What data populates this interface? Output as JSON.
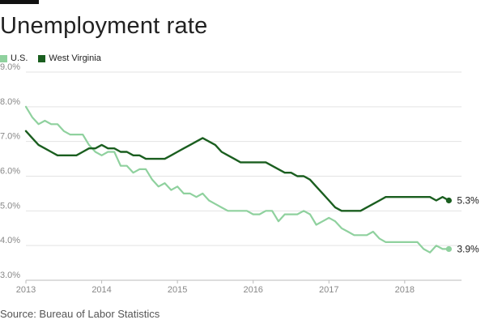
{
  "title": "Unemployment rate",
  "source": "Source: Bureau of Labor Statistics",
  "colors": {
    "us": "#8fd19e",
    "wv": "#1a5e1f",
    "grid": "#e3e3e3",
    "axis": "#bbbbbb"
  },
  "chart_data": {
    "type": "line",
    "title": "Unemployment rate",
    "xlabel": "",
    "ylabel": "",
    "xlim": [
      2013,
      2018.75
    ],
    "ylim": [
      3,
      9
    ],
    "x_ticks": [
      2013,
      2014,
      2015,
      2016,
      2017,
      2018
    ],
    "x_tick_labels": [
      "2013",
      "2014",
      "2015",
      "2016",
      "2017",
      "2018"
    ],
    "y_ticks": [
      3,
      4,
      5,
      6,
      7,
      8,
      9
    ],
    "y_tick_labels": [
      "3.0%",
      "4.0%",
      "5.0%",
      "6.0%",
      "7.0%",
      "8.0%",
      "9.0%"
    ],
    "series": [
      {
        "name": "U.S.",
        "color": "#8fd19e",
        "end_label": "3.9%",
        "x": [
          2013.0,
          2013.083,
          2013.167,
          2013.25,
          2013.333,
          2013.417,
          2013.5,
          2013.583,
          2013.667,
          2013.75,
          2013.833,
          2013.917,
          2014.0,
          2014.083,
          2014.167,
          2014.25,
          2014.333,
          2014.417,
          2014.5,
          2014.583,
          2014.667,
          2014.75,
          2014.833,
          2014.917,
          2015.0,
          2015.083,
          2015.167,
          2015.25,
          2015.333,
          2015.417,
          2015.5,
          2015.583,
          2015.667,
          2015.75,
          2015.833,
          2015.917,
          2016.0,
          2016.083,
          2016.167,
          2016.25,
          2016.333,
          2016.417,
          2016.5,
          2016.583,
          2016.667,
          2016.75,
          2016.833,
          2016.917,
          2017.0,
          2017.083,
          2017.167,
          2017.25,
          2017.333,
          2017.417,
          2017.5,
          2017.583,
          2017.667,
          2017.75,
          2017.833,
          2017.917,
          2018.0,
          2018.083,
          2018.167,
          2018.25,
          2018.333,
          2018.417,
          2018.5,
          2018.583
        ],
        "values": [
          8.0,
          7.7,
          7.5,
          7.6,
          7.5,
          7.5,
          7.3,
          7.2,
          7.2,
          7.2,
          6.9,
          6.7,
          6.6,
          6.7,
          6.7,
          6.3,
          6.3,
          6.1,
          6.2,
          6.2,
          5.9,
          5.7,
          5.8,
          5.6,
          5.7,
          5.5,
          5.5,
          5.4,
          5.5,
          5.3,
          5.2,
          5.1,
          5.0,
          5.0,
          5.0,
          5.0,
          4.9,
          4.9,
          5.0,
          5.0,
          4.7,
          4.9,
          4.9,
          4.9,
          5.0,
          4.9,
          4.6,
          4.7,
          4.8,
          4.7,
          4.5,
          4.4,
          4.3,
          4.3,
          4.3,
          4.4,
          4.2,
          4.1,
          4.1,
          4.1,
          4.1,
          4.1,
          4.1,
          3.9,
          3.8,
          4.0,
          3.9,
          3.9
        ]
      },
      {
        "name": "West Virginia",
        "color": "#1a5e1f",
        "end_label": "5.3%",
        "x": [
          2013.0,
          2013.083,
          2013.167,
          2013.25,
          2013.333,
          2013.417,
          2013.5,
          2013.583,
          2013.667,
          2013.75,
          2013.833,
          2013.917,
          2014.0,
          2014.083,
          2014.167,
          2014.25,
          2014.333,
          2014.417,
          2014.5,
          2014.583,
          2014.667,
          2014.75,
          2014.833,
          2014.917,
          2015.0,
          2015.083,
          2015.167,
          2015.25,
          2015.333,
          2015.417,
          2015.5,
          2015.583,
          2015.667,
          2015.75,
          2015.833,
          2015.917,
          2016.0,
          2016.083,
          2016.167,
          2016.25,
          2016.333,
          2016.417,
          2016.5,
          2016.583,
          2016.667,
          2016.75,
          2016.833,
          2016.917,
          2017.0,
          2017.083,
          2017.167,
          2017.25,
          2017.333,
          2017.417,
          2017.5,
          2017.583,
          2017.667,
          2017.75,
          2017.833,
          2017.917,
          2018.0,
          2018.083,
          2018.167,
          2018.25,
          2018.333,
          2018.417,
          2018.5,
          2018.583
        ],
        "values": [
          7.3,
          7.1,
          6.9,
          6.8,
          6.7,
          6.6,
          6.6,
          6.6,
          6.6,
          6.7,
          6.8,
          6.8,
          6.9,
          6.8,
          6.8,
          6.7,
          6.7,
          6.6,
          6.6,
          6.5,
          6.5,
          6.5,
          6.5,
          6.6,
          6.7,
          6.8,
          6.9,
          7.0,
          7.1,
          7.0,
          6.9,
          6.7,
          6.6,
          6.5,
          6.4,
          6.4,
          6.4,
          6.4,
          6.4,
          6.3,
          6.2,
          6.1,
          6.1,
          6.0,
          6.0,
          5.9,
          5.7,
          5.5,
          5.3,
          5.1,
          5.0,
          5.0,
          5.0,
          5.0,
          5.1,
          5.2,
          5.3,
          5.4,
          5.4,
          5.4,
          5.4,
          5.4,
          5.4,
          5.4,
          5.4,
          5.3,
          5.4,
          5.3
        ]
      }
    ]
  }
}
